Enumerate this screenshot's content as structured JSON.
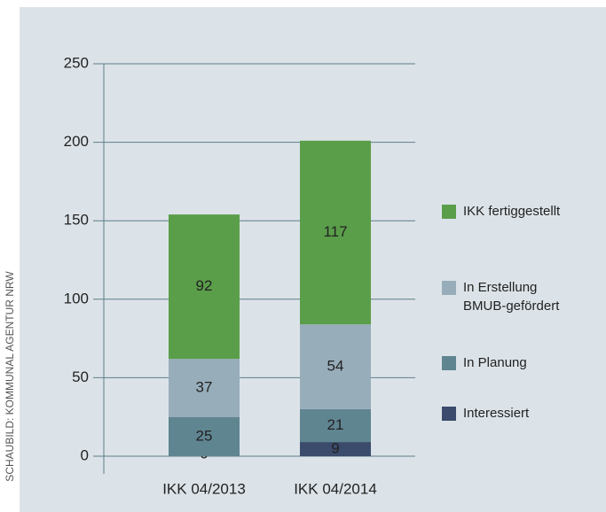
{
  "chart_data": {
    "type": "stacked_bar",
    "source": "SCHAUBILD: KOMMUNAL AGENTUR NRW",
    "categories": [
      "IKK 04/2013",
      "IKK 04/2014"
    ],
    "series": [
      {
        "name": "Interessiert",
        "color": "#3b4b6c",
        "values": [
          0,
          9
        ]
      },
      {
        "name": "In Planung",
        "color": "#5f8591",
        "values": [
          25,
          21
        ]
      },
      {
        "name": "In Erstellung BMUB-gefördert",
        "color": "#97adba",
        "values": [
          37,
          54
        ]
      },
      {
        "name": "IKK fertiggestellt",
        "color": "#5a9e4a",
        "values": [
          92,
          117
        ]
      }
    ],
    "ylim": [
      0,
      250
    ],
    "yticks": [
      0,
      50,
      100,
      150,
      200,
      250
    ],
    "grid": true,
    "legend": "right"
  }
}
